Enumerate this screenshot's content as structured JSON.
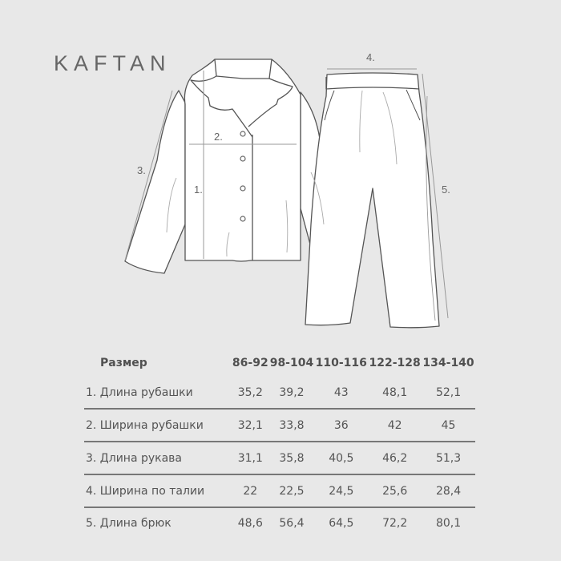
{
  "brand": "KAFTAN",
  "diagram_labels": [
    "1.",
    "2.",
    "3.",
    "4.",
    "5."
  ],
  "table": {
    "header": [
      "Размер",
      "86-92",
      "98-104",
      "110-116",
      "122-128",
      "134-140"
    ],
    "rows": [
      {
        "label": "1.  Длина рубашки",
        "values": [
          "35,2",
          "39,2",
          "43",
          "48,1",
          "52,1"
        ]
      },
      {
        "label": "2. Ширина рубашки",
        "values": [
          "32,1",
          "33,8",
          "36",
          "42",
          "45"
        ]
      },
      {
        "label": "3.  Длина рукава",
        "values": [
          "31,1",
          "35,8",
          "40,5",
          "46,2",
          "51,3"
        ]
      },
      {
        "label": "4. Ширина по талии",
        "values": [
          "22",
          "22,5",
          "24,5",
          "25,6",
          "28,4"
        ]
      },
      {
        "label": "5. Длина брюк",
        "values": [
          "48,6",
          "56,4",
          "64,5",
          "72,2",
          "80,1"
        ]
      }
    ]
  },
  "colors": {
    "background": "#e8e8e8",
    "text": "#555555",
    "garment": "#ffffff",
    "outline": "#555555"
  }
}
